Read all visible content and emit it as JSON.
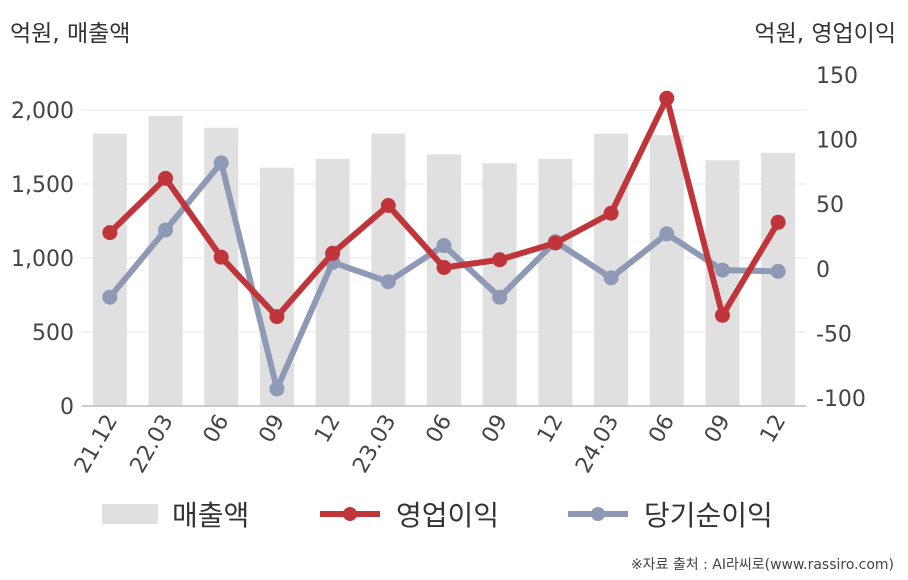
{
  "left_unit": "억원, 매출액",
  "right_unit": "억원, 영업이익",
  "source": "※자료 출처 : AI라씨로(www.rassiro.com)",
  "legend": {
    "sales": "매출액",
    "op": "영업이익",
    "net": "당기순이익"
  },
  "colors": {
    "sales": "#e0e0e0",
    "op": "#c0353a",
    "net": "#8e9ab5",
    "grid": "#e6e6e6"
  },
  "chart_data": {
    "type": "bar+line",
    "categories": [
      "21.12",
      "22.03",
      "06",
      "09",
      "12",
      "23.03",
      "06",
      "09",
      "12",
      "24.03",
      "06",
      "09",
      "12"
    ],
    "left_axis": {
      "ticks": [
        "0",
        "500",
        "1,000",
        "1,500",
        "2,000"
      ],
      "tick_values": [
        0,
        500,
        1000,
        1500,
        2000
      ],
      "range": [
        0,
        2000
      ]
    },
    "right_axis": {
      "ticks": [
        "-100",
        "-50",
        "0",
        "50",
        "100",
        "150"
      ],
      "tick_values": [
        -100,
        -50,
        0,
        50,
        100,
        150
      ],
      "range": [
        -100,
        150
      ]
    },
    "series": [
      {
        "name": "매출액",
        "kind": "bar",
        "axis": "left",
        "values": [
          1840,
          1960,
          1880,
          1610,
          1670,
          1840,
          1700,
          1640,
          1670,
          1840,
          1830,
          1660,
          1710
        ]
      },
      {
        "name": "영업이익",
        "kind": "line",
        "axis": "right",
        "values": [
          28,
          70,
          9,
          -37,
          12,
          49,
          1,
          7,
          20,
          43,
          132,
          -36,
          36
        ]
      },
      {
        "name": "당기순이익",
        "kind": "line",
        "axis": "right",
        "values": [
          -22,
          30,
          82,
          -93,
          5,
          -10,
          18,
          -22,
          21,
          -7,
          27,
          -1,
          -2
        ]
      }
    ]
  }
}
